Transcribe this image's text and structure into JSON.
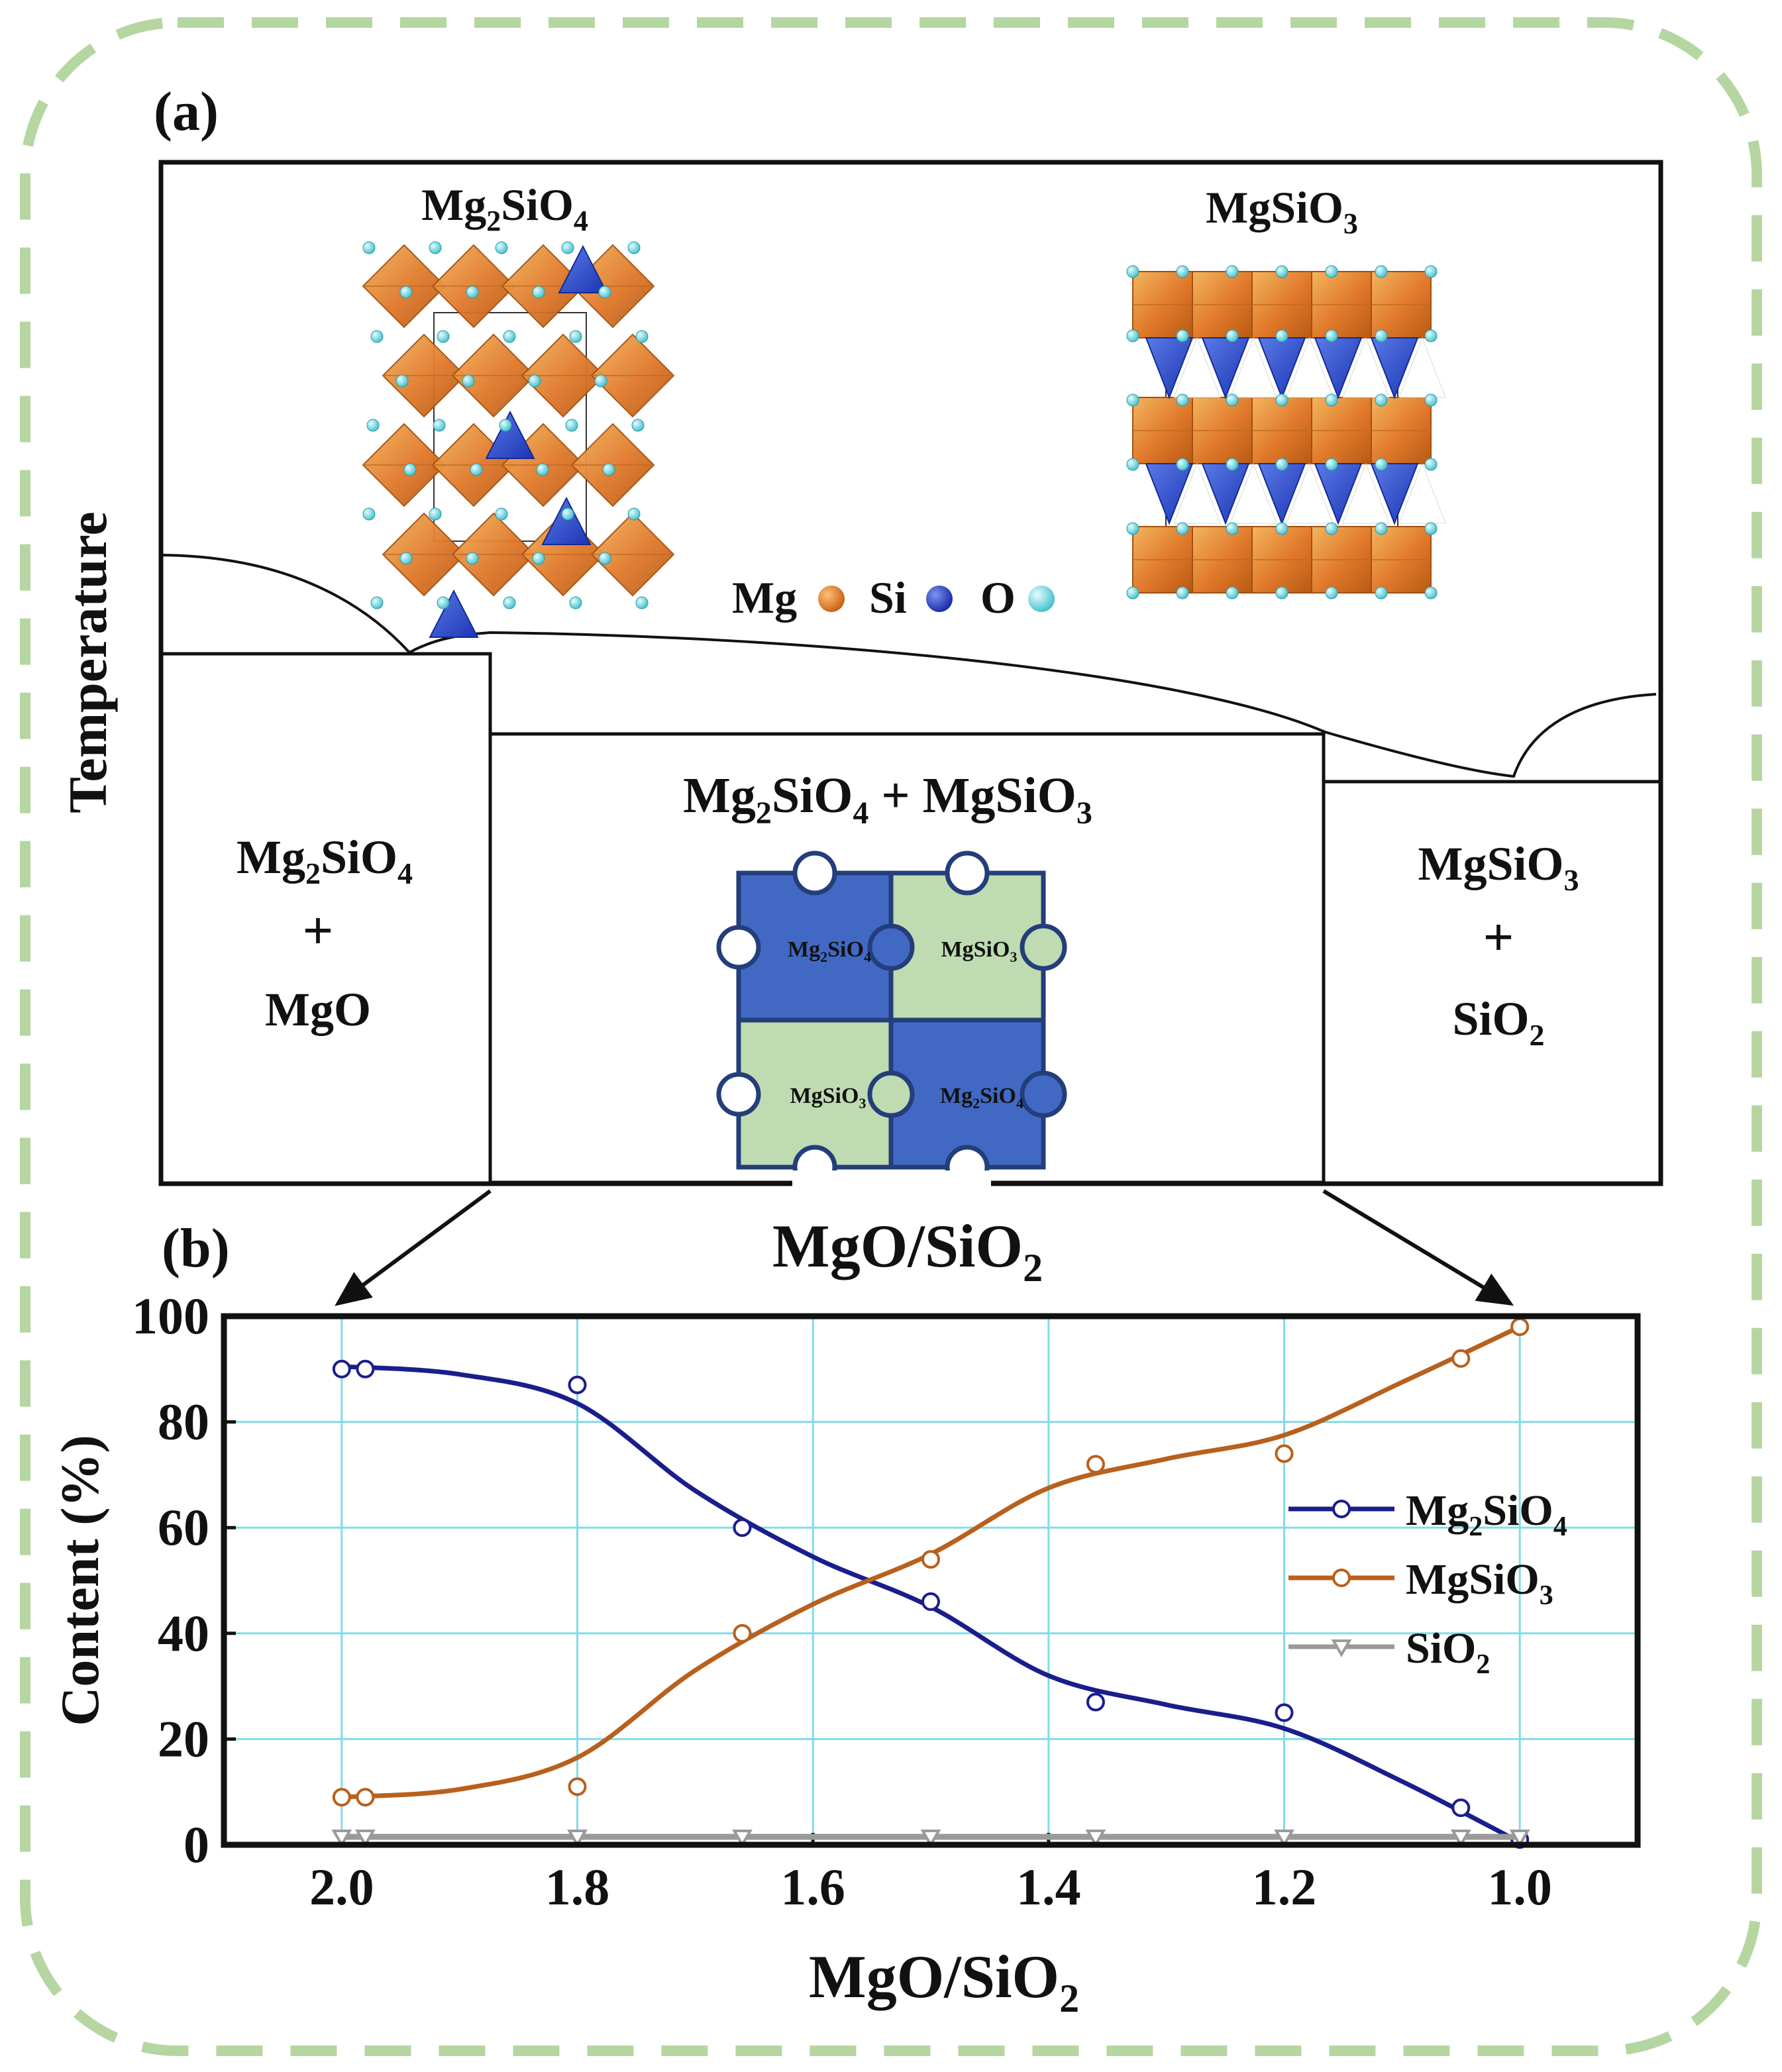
{
  "panel_a": {
    "label": "(a)",
    "y_axis_label": "Temperature",
    "x_axis_label": "MgO/SiO",
    "x_axis_label_sub": "2",
    "structures": {
      "left_title": [
        "Mg",
        "2",
        "SiO",
        "4"
      ],
      "right_title": [
        "MgSiO",
        "3"
      ]
    },
    "atom_legend": [
      {
        "label": "Mg",
        "color": "#E07A1E"
      },
      {
        "label": "Si",
        "color": "#1F3FC8"
      },
      {
        "label": "O",
        "color": "#5FD6DF"
      }
    ],
    "regions": {
      "left": {
        "line1": [
          "Mg",
          "2",
          "SiO",
          "4"
        ],
        "plus": "+",
        "line3": "MgO"
      },
      "center": {
        "title": [
          "Mg",
          "2",
          "SiO",
          "4",
          " + ",
          "MgSiO",
          "3"
        ]
      },
      "right": {
        "line1": [
          "MgSiO",
          "3"
        ],
        "plus": "+",
        "line3": [
          "SiO",
          "2"
        ]
      }
    },
    "puzzle": [
      {
        "text": [
          "Mg",
          "2",
          "SiO",
          "4"
        ],
        "color": "#4169C4"
      },
      {
        "text": [
          "MgSiO",
          "3"
        ],
        "color": "#BFDBB1"
      },
      {
        "text": [
          "MgSiO",
          "3"
        ],
        "color": "#BFDBB1"
      },
      {
        "text": [
          "Mg",
          "2",
          "SiO",
          "4"
        ],
        "color": "#4169C4"
      }
    ]
  },
  "panel_b": {
    "label": "(b)"
  },
  "chart_data": {
    "type": "line",
    "title": "",
    "xlabel": "MgO/SiO2",
    "ylabel": "Content (%)",
    "xlim": [
      2.1,
      0.9
    ],
    "ylim": [
      0,
      100
    ],
    "x_reversed": true,
    "xticks": [
      "2.0",
      "1.8",
      "1.6",
      "1.4",
      "1.2",
      "1.0"
    ],
    "yticks": [
      "0",
      "20",
      "40",
      "60",
      "80",
      "100"
    ],
    "grid": true,
    "legend_position": "right",
    "series": [
      {
        "name": "Mg2SiO4",
        "legend": [
          "Mg",
          "2",
          "SiO",
          "4"
        ],
        "color": "#1A1E8C",
        "marker": "circle",
        "x": [
          2.0,
          1.98,
          1.8,
          1.66,
          1.5,
          1.36,
          1.2,
          1.05,
          1.0
        ],
        "y": [
          90,
          90,
          87,
          60,
          46,
          27,
          25,
          7,
          1
        ],
        "curve": [
          [
            2.0,
            90.5
          ],
          [
            1.9,
            89.0
          ],
          [
            1.8,
            83.5
          ],
          [
            1.7,
            67
          ],
          [
            1.6,
            54.5
          ],
          [
            1.5,
            45
          ],
          [
            1.4,
            32
          ],
          [
            1.3,
            26.5
          ],
          [
            1.2,
            22
          ],
          [
            1.1,
            12
          ],
          [
            1.0,
            0.5
          ]
        ]
      },
      {
        "name": "MgSiO3",
        "legend": [
          "MgSiO",
          "3"
        ],
        "color": "#B8601D",
        "marker": "circle",
        "x": [
          2.0,
          1.98,
          1.8,
          1.66,
          1.5,
          1.36,
          1.2,
          1.05,
          1.0
        ],
        "y": [
          9,
          9,
          11,
          40,
          54,
          72,
          74,
          92,
          98
        ],
        "curve": [
          [
            2.0,
            9
          ],
          [
            1.9,
            10.5
          ],
          [
            1.8,
            16.5
          ],
          [
            1.7,
            33
          ],
          [
            1.6,
            45.5
          ],
          [
            1.5,
            55
          ],
          [
            1.4,
            67.5
          ],
          [
            1.3,
            73
          ],
          [
            1.2,
            77.5
          ],
          [
            1.1,
            87.5
          ],
          [
            1.0,
            98
          ]
        ]
      },
      {
        "name": "SiO2",
        "legend": [
          "SiO",
          "2"
        ],
        "color": "#9A9A9A",
        "marker": "triangle-down",
        "x": [
          2.0,
          1.98,
          1.8,
          1.66,
          1.5,
          1.36,
          1.2,
          1.05,
          1.0
        ],
        "y": [
          1.5,
          1.5,
          1.5,
          1.5,
          1.5,
          1.5,
          1.5,
          1.5,
          1.5
        ],
        "curve": [
          [
            2.0,
            1.5
          ],
          [
            1.0,
            1.5
          ]
        ]
      }
    ]
  }
}
